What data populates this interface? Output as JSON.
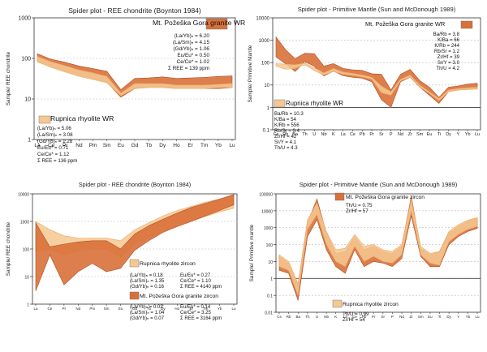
{
  "colors": {
    "granite": "#d9703a",
    "granite_dark": "#b24f22",
    "rhyolite": "#f6c891",
    "line": "#9a6a44",
    "grid": "#bbbbbb"
  },
  "chart_data": [
    {
      "id": "tl",
      "type": "area",
      "title": "Spider plot - REE chondrite (Boynton 1984)",
      "xlabel": "",
      "ylabel": "Sample/ REE chondrite",
      "yscale": "log",
      "ylim": [
        1,
        1000
      ],
      "yticks": [
        "1",
        "10",
        "100",
        "1000"
      ],
      "grid": "dashed-at-10-and-100",
      "categories": [
        "La",
        "Ce",
        "Pr",
        "Nd",
        "Pm",
        "Sm",
        "Eu",
        "Gd",
        "Tb",
        "Dy",
        "Ho",
        "Er",
        "Tm",
        "Yb",
        "Lu"
      ],
      "series": [
        {
          "name": "Mt. Požeška Gora granite WR",
          "color": "granite",
          "upper": [
            130,
            95,
            80,
            65,
            56,
            48,
            17,
            32,
            33,
            35,
            32,
            33,
            34,
            36,
            37
          ],
          "lower": [
            85,
            62,
            48,
            38,
            32,
            26,
            11,
            18,
            20,
            20,
            18,
            18,
            18,
            18,
            19
          ]
        },
        {
          "name": "Rupnica rhyolite WR",
          "color": "rhyolite",
          "upper": [
            112,
            82,
            66,
            52,
            44,
            36,
            14,
            24,
            24,
            24,
            22,
            22,
            22,
            23,
            24
          ],
          "lower": [
            82,
            60,
            46,
            36,
            30,
            25,
            12,
            18,
            19,
            19,
            18,
            18,
            18,
            19,
            19
          ]
        }
      ],
      "annotations": [
        {
          "key": "granite_legend",
          "text": "Mt. Požeška Gora granite WR"
        },
        {
          "key": "g1",
          "text": "(La/Yb)ₙ = 6.20"
        },
        {
          "key": "g2",
          "text": "(La/Sm)ₙ = 4.15"
        },
        {
          "key": "g3",
          "text": "(Gd/Yb)ₙ = 1.06"
        },
        {
          "key": "g4",
          "text": "Eu/Eu* = 0.50"
        },
        {
          "key": "g5",
          "text": "Ce/Ce* = 1.02"
        },
        {
          "key": "g6",
          "text": "Σ REE = 139 ppm"
        },
        {
          "key": "rhyo_legend",
          "text": "Rupnica rhyolite WR"
        },
        {
          "key": "r1",
          "text": "(La/Yb)ₙ = 5.06"
        },
        {
          "key": "r2",
          "text": "(La/Sm)ₙ = 3.08"
        },
        {
          "key": "r3",
          "text": "(Gd/Yb)ₙ = 1.28"
        },
        {
          "key": "r4",
          "text": "Eu/Eu* = 0.71"
        },
        {
          "key": "r5",
          "text": "Ce/Ce* = 1.12"
        },
        {
          "key": "r6",
          "text": "Σ REE = 136 ppm"
        }
      ]
    },
    {
      "id": "tr",
      "type": "area",
      "title": "Spider plot - Primitive Mantle (Sun and McDonough 1989)",
      "xlabel": "",
      "ylabel": "Sample/ Primitive Mantle",
      "yscale": "log",
      "ylim": [
        0.1,
        10000
      ],
      "yticks": [
        "0.1",
        "1",
        "10",
        "100",
        "1000",
        "10000"
      ],
      "grid": "dashed",
      "categories": [
        "Cs",
        "Rb",
        "Ba",
        "Th",
        "U",
        "Nb",
        "K",
        "La",
        "Ce",
        "Pb",
        "Pr",
        "Sr",
        "P",
        "Nd",
        "Zr",
        "Sm",
        "Eu",
        "Ti",
        "Dy",
        "Y",
        "Yb",
        "Lu"
      ],
      "series": [
        {
          "name": "Mt. Požeška Gora granite WR",
          "color": "granite",
          "upper": [
            1400,
            380,
            150,
            260,
            250,
            70,
            90,
            55,
            48,
            45,
            32,
            30,
            6,
            30,
            50,
            16,
            8,
            2.8,
            8,
            9,
            11,
            12
          ],
          "lower": [
            180,
            90,
            40,
            110,
            70,
            25,
            42,
            26,
            22,
            20,
            14,
            2.2,
            1.0,
            14,
            22,
            8,
            3.5,
            1.5,
            5,
            6,
            6.5,
            7
          ]
        },
        {
          "name": "Rupnica rhyolite WR",
          "color": "rhyolite",
          "upper": [
            90,
            85,
            80,
            95,
            60,
            35,
            55,
            38,
            33,
            28,
            22,
            9,
            5,
            18,
            28,
            10,
            5,
            2.5,
            6,
            7,
            7.5,
            8
          ],
          "lower": [
            70,
            50,
            55,
            80,
            45,
            28,
            40,
            30,
            27,
            23,
            18,
            4.5,
            3.5,
            15,
            22,
            8,
            4.2,
            2.0,
            5,
            6,
            6.2,
            6.5
          ]
        }
      ],
      "annotations": [
        {
          "key": "granite_legend",
          "text": "Mt. Požeška Gora granite WR"
        },
        {
          "key": "g1",
          "text": "Ba/Rb = 3.8"
        },
        {
          "key": "g2",
          "text": "K/Ba = 66"
        },
        {
          "key": "g3",
          "text": "K/Rb = 244"
        },
        {
          "key": "g4",
          "text": "Rb/Sr = 1.2"
        },
        {
          "key": "g5",
          "text": "Zr/Hf = 39"
        },
        {
          "key": "g6",
          "text": "Sr/Y = 3.0"
        },
        {
          "key": "g7",
          "text": "Th/U = 4.2"
        },
        {
          "key": "rhyo_legend",
          "text": "Rupnica rhyolite WR"
        },
        {
          "key": "r1",
          "text": "Ba/Rb = 10.3"
        },
        {
          "key": "r2",
          "text": "K/Ba = 54"
        },
        {
          "key": "r3",
          "text": "K/Rb = 556"
        },
        {
          "key": "r4",
          "text": "Rb/Sr = 0.4"
        },
        {
          "key": "r5",
          "text": "Zr/Hf = 42"
        },
        {
          "key": "r6",
          "text": "Sr/Y = 4.1"
        },
        {
          "key": "r7",
          "text": "Th/U = 4.3"
        }
      ]
    },
    {
      "id": "bl",
      "type": "area",
      "title": "Spider plot - REE chondrite (Boynton 1984)",
      "xlabel": "",
      "ylabel": "Sample/ REE chondrite",
      "yscale": "log",
      "ylim": [
        1,
        10000
      ],
      "yticks": [
        "1",
        "10",
        "100",
        "1000",
        "10000"
      ],
      "grid": "dashed",
      "categories": [
        "La",
        "Ce",
        "Pr",
        "Nd",
        "Pm",
        "Sm",
        "Eu",
        "Gd",
        "Tb",
        "Dy",
        "Ho",
        "Er",
        "Tm",
        "Yb",
        "Lu"
      ],
      "series": [
        {
          "name": "Rupnica rhyolite zircon",
          "color": "rhyolite",
          "upper": [
            1000,
            500,
            300,
            250,
            250,
            250,
            200,
            500,
            900,
            1600,
            2500,
            3500,
            5000,
            6500,
            9000
          ],
          "lower": [
            80,
            100,
            60,
            90,
            100,
            100,
            50,
            150,
            250,
            450,
            700,
            1000,
            1500,
            2200,
            3000
          ]
        },
        {
          "name": "Mt. Požeška Gora granite zircon",
          "color": "granite",
          "upper": [
            900,
            120,
            150,
            180,
            200,
            200,
            100,
            350,
            700,
            1200,
            2000,
            3200,
            4500,
            6500,
            9500
          ],
          "lower": [
            3,
            60,
            5,
            15,
            30,
            15,
            20,
            90,
            200,
            400,
            650,
            1000,
            1600,
            2500,
            4000
          ]
        }
      ],
      "annotations": [
        {
          "key": "rhyo_legend",
          "text": "Rupnica rhyolite zircon"
        },
        {
          "key": "r1",
          "text": "(La/Yb)ₙ = 0.18"
        },
        {
          "key": "r2",
          "text": "(La/Sm)ₙ = 1.35"
        },
        {
          "key": "r3",
          "text": "(Gd/Yb)ₙ = 0.16"
        },
        {
          "key": "r4",
          "text": "Eu/Eu* = 0.27"
        },
        {
          "key": "r5",
          "text": "Ce/Ce* = 1.10"
        },
        {
          "key": "r6",
          "text": "Σ REE = 4140 ppm"
        },
        {
          "key": "granite_legend",
          "text": "Mt. Požeška Gora granite zircon"
        },
        {
          "key": "g1",
          "text": "(La/Yb)ₙ = 0.03"
        },
        {
          "key": "g2",
          "text": "(La/Sm)ₙ = 1.04"
        },
        {
          "key": "g3",
          "text": "(Gd/Yb)ₙ = 0.07"
        },
        {
          "key": "g4",
          "text": "Eu/Eu* = 0.14"
        },
        {
          "key": "g5",
          "text": "Ce/Ce* = 3.25"
        },
        {
          "key": "g6",
          "text": "Σ REE = 3164 ppm"
        }
      ]
    },
    {
      "id": "br",
      "type": "area",
      "title": "Spider plot - Primitive Mantle (Sun and McDonough 1989)",
      "xlabel": "",
      "ylabel": "Sample/ Primitive mantle",
      "yscale": "log",
      "ylim": [
        0.01,
        100000
      ],
      "yticks": [
        "0.01",
        "0.1",
        "1",
        "10",
        "100",
        "1000",
        "10000",
        "100000"
      ],
      "grid": "dashed",
      "categories": [
        "Cs",
        "Rb",
        "Ba",
        "Th",
        "U",
        "Nb",
        "K",
        "La",
        "Ce",
        "Pb",
        "Pr",
        "Sr",
        "P",
        "Nd",
        "Zr",
        "Sm",
        "Eu",
        "Ti",
        "Dy",
        "Y",
        "Yb",
        "Lu"
      ],
      "series": [
        {
          "name": "Mt. Požeška Gora granite zircon",
          "color": "granite",
          "upper": [
            20,
            8,
            0.4,
            2000,
            50000,
            500,
            30,
            40,
            300,
            50,
            80,
            40,
            30,
            80,
            70000,
            60,
            25,
            40,
            500,
            1200,
            2500,
            3500
          ],
          "lower": [
            3,
            2,
            0.05,
            300,
            3000,
            50,
            5,
            2,
            50,
            5,
            10,
            8,
            5,
            15,
            5000,
            20,
            5,
            5,
            100,
            300,
            600,
            900
          ]
        },
        {
          "name": "Rupnica rhyolite zircon",
          "color": "rhyolite",
          "upper": [
            25,
            10,
            0.5,
            3000,
            30000,
            600,
            50,
            60,
            400,
            80,
            100,
            50,
            40,
            100,
            50000,
            80,
            30,
            40,
            600,
            1500,
            2800,
            4000
          ],
          "lower": [
            5,
            3,
            0.1,
            800,
            6000,
            100,
            10,
            5,
            80,
            10,
            20,
            10,
            8,
            25,
            10000,
            25,
            8,
            6,
            150,
            400,
            800,
            1200
          ]
        }
      ],
      "annotations": [
        {
          "key": "granite_legend",
          "text": "Mt. Požeška Gora granite zircon"
        },
        {
          "key": "g1",
          "text": "Th/U = 0.75"
        },
        {
          "key": "g2",
          "text": "Zr/Hf = 57"
        },
        {
          "key": "rhyo_legend",
          "text": "Rupnica rhyolite zircon"
        },
        {
          "key": "r1",
          "text": "Th/U = 0.99"
        },
        {
          "key": "r2",
          "text": "Zr/Hf = 54"
        }
      ]
    }
  ]
}
